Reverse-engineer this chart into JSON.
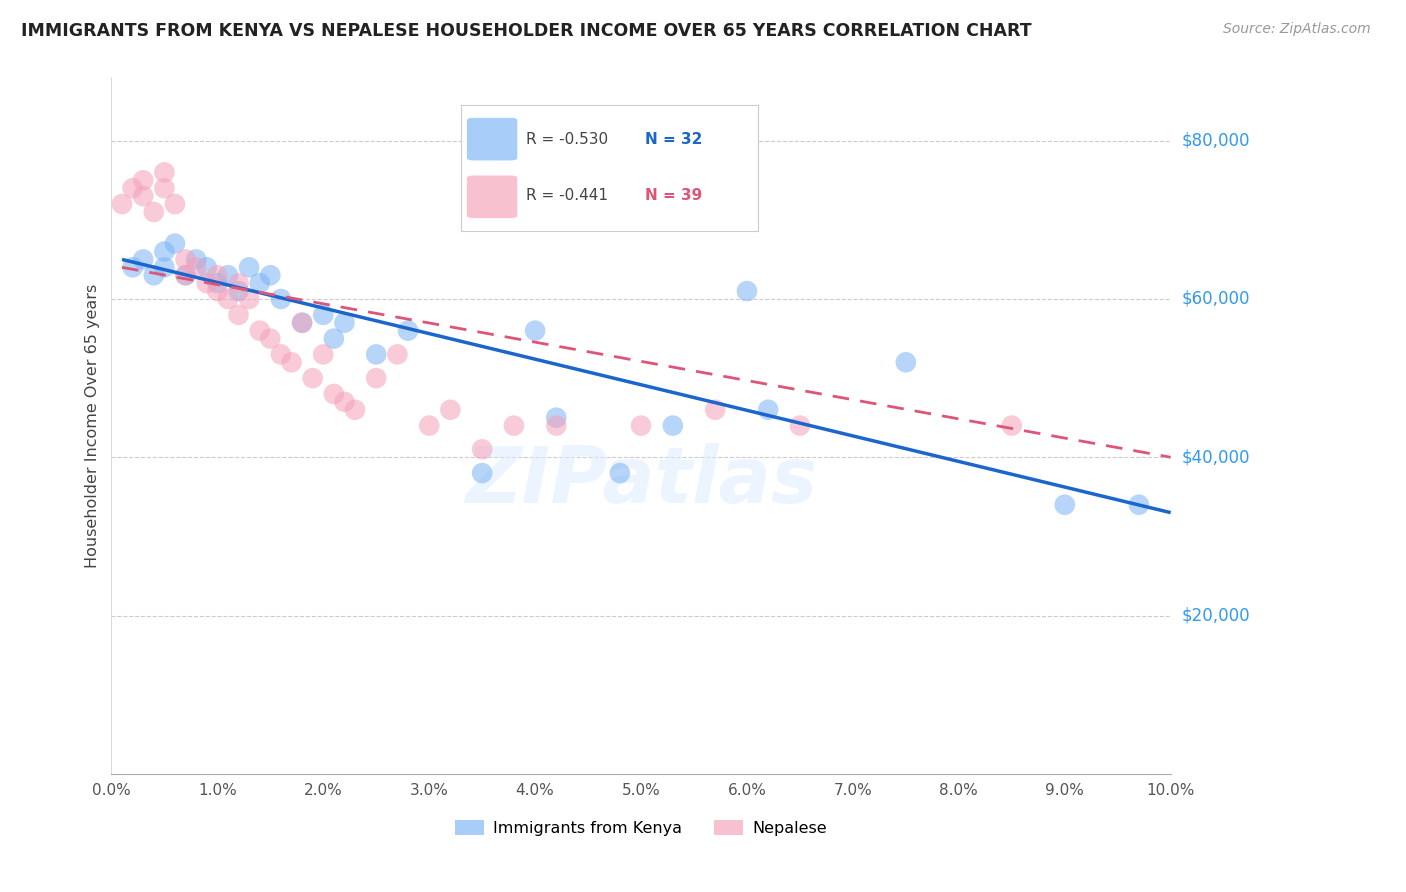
{
  "title": "IMMIGRANTS FROM KENYA VS NEPALESE HOUSEHOLDER INCOME OVER 65 YEARS CORRELATION CHART",
  "source": "Source: ZipAtlas.com",
  "ylabel": "Householder Income Over 65 years",
  "xlim": [
    0.0,
    0.1
  ],
  "ylim": [
    0,
    88000
  ],
  "yticks": [
    20000,
    40000,
    60000,
    80000
  ],
  "ytick_labels": [
    "$20,000",
    "$40,000",
    "$60,000",
    "$80,000"
  ],
  "legend_kenya_R": "-0.530",
  "legend_kenya_N": "32",
  "legend_nepal_R": "-0.441",
  "legend_nepal_N": "39",
  "kenya_color": "#7ab3f5",
  "nepal_color": "#f5a0b8",
  "kenya_line_color": "#1a66cc",
  "nepal_line_color": "#dd5577",
  "watermark": "ZIPatlas",
  "kenya_x": [
    0.002,
    0.003,
    0.004,
    0.005,
    0.005,
    0.006,
    0.007,
    0.008,
    0.009,
    0.01,
    0.011,
    0.012,
    0.013,
    0.014,
    0.015,
    0.016,
    0.018,
    0.02,
    0.021,
    0.022,
    0.025,
    0.028,
    0.035,
    0.04,
    0.042,
    0.048,
    0.053,
    0.06,
    0.062,
    0.075,
    0.09,
    0.097
  ],
  "kenya_y": [
    64000,
    65000,
    63000,
    66000,
    64000,
    67000,
    63000,
    65000,
    64000,
    62000,
    63000,
    61000,
    64000,
    62000,
    63000,
    60000,
    57000,
    58000,
    55000,
    57000,
    53000,
    56000,
    38000,
    56000,
    45000,
    38000,
    44000,
    61000,
    46000,
    52000,
    34000,
    34000
  ],
  "nepal_x": [
    0.001,
    0.002,
    0.003,
    0.003,
    0.004,
    0.005,
    0.005,
    0.006,
    0.007,
    0.007,
    0.008,
    0.009,
    0.01,
    0.01,
    0.011,
    0.012,
    0.012,
    0.013,
    0.014,
    0.015,
    0.016,
    0.017,
    0.018,
    0.019,
    0.02,
    0.021,
    0.022,
    0.023,
    0.025,
    0.027,
    0.03,
    0.032,
    0.035,
    0.038,
    0.042,
    0.05,
    0.057,
    0.065,
    0.085
  ],
  "nepal_y": [
    72000,
    74000,
    73000,
    75000,
    71000,
    74000,
    76000,
    72000,
    65000,
    63000,
    64000,
    62000,
    61000,
    63000,
    60000,
    62000,
    58000,
    60000,
    56000,
    55000,
    53000,
    52000,
    57000,
    50000,
    53000,
    48000,
    47000,
    46000,
    50000,
    53000,
    44000,
    46000,
    41000,
    44000,
    44000,
    44000,
    46000,
    44000,
    44000
  ],
  "kenya_line_x0": 0.001,
  "kenya_line_x1": 0.1,
  "kenya_line_y0": 65000,
  "kenya_line_y1": 33000,
  "nepal_line_x0": 0.001,
  "nepal_line_x1": 0.1,
  "nepal_line_y0": 64000,
  "nepal_line_y1": 40000
}
